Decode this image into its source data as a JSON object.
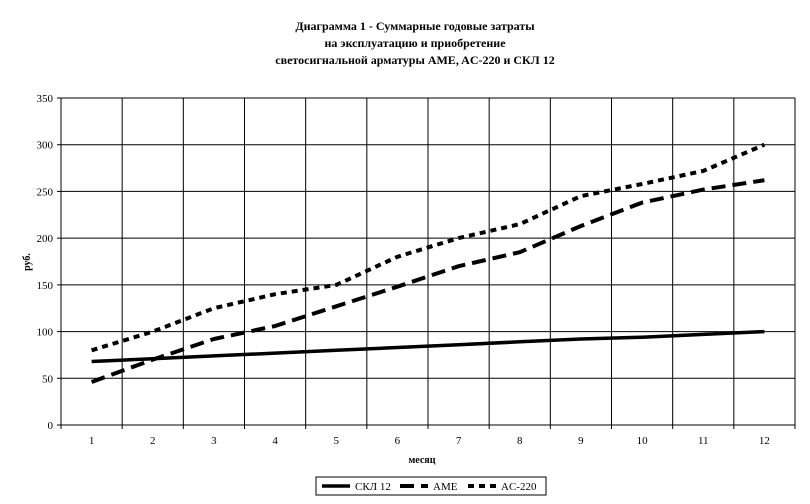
{
  "chart_data": {
    "type": "line",
    "title_lines": [
      "Диаграмма 1 - Суммарные годовые затраты",
      "на эксплуатацию и приобретение",
      "светосигнальной арматуры AME, AC-220 и СКЛ 12"
    ],
    "xlabel": "месяц",
    "ylabel": "руб.",
    "x": [
      1,
      2,
      3,
      4,
      5,
      6,
      7,
      8,
      9,
      10,
      11,
      12
    ],
    "ylim": [
      0,
      350
    ],
    "yticks": [
      0,
      50,
      100,
      150,
      200,
      250,
      300,
      350
    ],
    "grid": true,
    "legend_position": "bottom",
    "series": [
      {
        "name": "СКЛ 12",
        "style": "solid",
        "values": [
          68,
          71,
          74,
          77,
          80,
          83,
          86,
          89,
          92,
          94,
          97,
          100
        ]
      },
      {
        "name": "AME",
        "style": "dashed",
        "values": [
          46,
          70,
          92,
          106,
          127,
          148,
          170,
          185,
          213,
          238,
          252,
          262
        ]
      },
      {
        "name": "AC-220",
        "style": "dotted",
        "values": [
          80,
          100,
          125,
          140,
          150,
          180,
          200,
          215,
          245,
          258,
          272,
          300
        ]
      }
    ]
  }
}
